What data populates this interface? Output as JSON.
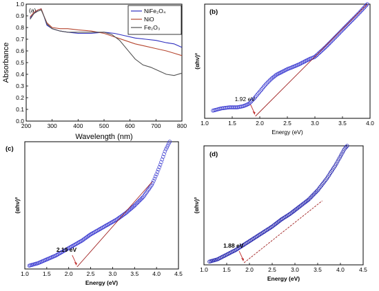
{
  "chart_data": [
    {
      "panel": "(a)",
      "type": "line",
      "xlabel": "Wavelength (nm)",
      "ylabel": "Absorbance",
      "xlim": [
        200,
        800
      ],
      "ylim": [
        0.0,
        1.0
      ],
      "xticks": [
        "200",
        "300",
        "400",
        "500",
        "600",
        "700",
        "800"
      ],
      "yticks": [
        "0.0",
        "0.1",
        "0.2",
        "0.3",
        "0.4",
        "0.5",
        "0.6",
        "0.7",
        "0.8",
        "0.9",
        "1.0"
      ],
      "legend_position": "top-right",
      "legend": [
        "NiFe₂O₄",
        "NiO",
        "Fe₂O₃"
      ],
      "series": [
        {
          "name": "NiFe₂O₄",
          "color": "#2e2ebf",
          "x": [
            215,
            230,
            245,
            258,
            268,
            280,
            300,
            330,
            360,
            400,
            450,
            500,
            540,
            580,
            620,
            660,
            700,
            740,
            770,
            800
          ],
          "y": [
            0.88,
            0.92,
            0.95,
            0.96,
            0.9,
            0.82,
            0.79,
            0.77,
            0.76,
            0.75,
            0.75,
            0.76,
            0.75,
            0.73,
            0.71,
            0.7,
            0.69,
            0.67,
            0.66,
            0.63
          ]
        },
        {
          "name": "NiO",
          "color": "#b5452e",
          "x": [
            215,
            230,
            245,
            258,
            268,
            280,
            300,
            330,
            360,
            400,
            450,
            500,
            540,
            580,
            620,
            660,
            700,
            740,
            770,
            800
          ],
          "y": [
            0.89,
            0.93,
            0.95,
            0.96,
            0.9,
            0.84,
            0.8,
            0.79,
            0.79,
            0.78,
            0.77,
            0.75,
            0.72,
            0.69,
            0.66,
            0.64,
            0.62,
            0.6,
            0.58,
            0.56
          ]
        },
        {
          "name": "Fe₂O₃",
          "color": "#505050",
          "x": [
            215,
            230,
            245,
            258,
            268,
            280,
            300,
            330,
            360,
            400,
            450,
            500,
            530,
            560,
            590,
            620,
            650,
            680,
            710,
            740,
            770,
            800
          ],
          "y": [
            0.87,
            0.92,
            0.94,
            0.95,
            0.9,
            0.83,
            0.79,
            0.77,
            0.76,
            0.76,
            0.76,
            0.76,
            0.74,
            0.69,
            0.61,
            0.53,
            0.48,
            0.46,
            0.43,
            0.4,
            0.39,
            0.41
          ]
        }
      ]
    },
    {
      "panel": "(b)",
      "type": "scatter",
      "xlabel": "Energy (eV)",
      "ylabel": "(αhν)²",
      "xlim": [
        1.0,
        4.0
      ],
      "xticks": [
        "1.0",
        "1.5",
        "2.0",
        "2.5",
        "3.0",
        "3.5",
        "4.0"
      ],
      "annotation": "1.92 eV",
      "band_gap_ev": 1.92,
      "fit_line": {
        "x": [
          1.92,
          3.95
        ],
        "y": [
          0.0,
          1.0
        ]
      },
      "series": [
        {
          "color": "#3a3ad0",
          "x": [
            1.15,
            1.3,
            1.45,
            1.6,
            1.7,
            1.8,
            1.9,
            2.0,
            2.1,
            2.2,
            2.3,
            2.5,
            2.7,
            2.9,
            3.0,
            3.2,
            3.4,
            3.6,
            3.8,
            3.95
          ],
          "y": [
            0.05,
            0.07,
            0.08,
            0.08,
            0.09,
            0.11,
            0.16,
            0.22,
            0.28,
            0.33,
            0.37,
            0.42,
            0.46,
            0.51,
            0.53,
            0.62,
            0.72,
            0.82,
            0.92,
            1.0
          ]
        }
      ]
    },
    {
      "panel": "(c)",
      "type": "scatter",
      "xlabel": "Energy (eV)",
      "ylabel": "(αhν)²",
      "xlim": [
        1.0,
        4.5
      ],
      "xticks": [
        "1.0",
        "1.5",
        "2.0",
        "2.5",
        "3.0",
        "3.5",
        "4.0",
        "4.5"
      ],
      "annotation": "2.19 eV",
      "band_gap_ev": 2.19,
      "fit_line": {
        "x": [
          2.19,
          3.9
        ],
        "y": [
          0.0,
          0.68
        ]
      },
      "series": [
        {
          "color": "#3a3ad0",
          "x": [
            1.1,
            1.3,
            1.5,
            1.7,
            1.9,
            2.1,
            2.3,
            2.5,
            2.7,
            2.9,
            3.1,
            3.3,
            3.5,
            3.7,
            3.9,
            4.0,
            4.1,
            4.2,
            4.3
          ],
          "y": [
            0.01,
            0.03,
            0.06,
            0.09,
            0.13,
            0.17,
            0.21,
            0.26,
            0.3,
            0.34,
            0.38,
            0.43,
            0.49,
            0.56,
            0.66,
            0.74,
            0.83,
            0.93,
            1.0
          ]
        }
      ]
    },
    {
      "panel": "(d)",
      "type": "scatter",
      "xlabel": "Energy (eV)",
      "ylabel": "(αhν)²",
      "xlim": [
        1.0,
        4.5
      ],
      "xticks": [
        "1.0",
        "1.5",
        "2.0",
        "2.5",
        "3.0",
        "3.5",
        "4.0",
        "4.5"
      ],
      "annotation": "1.88 eV",
      "band_gap_ev": 1.88,
      "fit_line": {
        "x": [
          1.88,
          3.6
        ],
        "y": [
          0.0,
          0.53
        ]
      },
      "series": [
        {
          "color": "#2a2ab0",
          "x": [
            1.12,
            1.3,
            1.5,
            1.7,
            1.9,
            2.1,
            2.3,
            2.5,
            2.7,
            2.9,
            3.1,
            3.3,
            3.5,
            3.7,
            3.9,
            4.0,
            4.1,
            4.15
          ],
          "y": [
            0.01,
            0.03,
            0.07,
            0.11,
            0.16,
            0.21,
            0.26,
            0.31,
            0.37,
            0.42,
            0.48,
            0.54,
            0.62,
            0.72,
            0.84,
            0.91,
            0.98,
            1.0
          ]
        }
      ]
    }
  ]
}
